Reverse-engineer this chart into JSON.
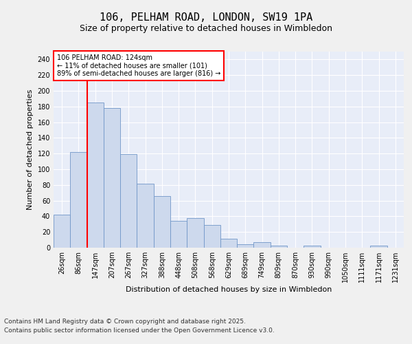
{
  "title1": "106, PELHAM ROAD, LONDON, SW19 1PA",
  "title2": "Size of property relative to detached houses in Wimbledon",
  "xlabel": "Distribution of detached houses by size in Wimbledon",
  "ylabel": "Number of detached properties",
  "bar_labels": [
    "26sqm",
    "86sqm",
    "147sqm",
    "207sqm",
    "267sqm",
    "327sqm",
    "388sqm",
    "448sqm",
    "508sqm",
    "568sqm",
    "629sqm",
    "689sqm",
    "749sqm",
    "809sqm",
    "870sqm",
    "930sqm",
    "990sqm",
    "1050sqm",
    "1111sqm",
    "1171sqm",
    "1231sqm"
  ],
  "bar_values": [
    42,
    122,
    185,
    178,
    119,
    82,
    66,
    34,
    38,
    29,
    11,
    4,
    7,
    3,
    0,
    3,
    0,
    0,
    0,
    3,
    0
  ],
  "bar_color": "#cdd9ed",
  "bar_edge_color": "#7096c8",
  "ylim": [
    0,
    250
  ],
  "yticks": [
    0,
    20,
    40,
    60,
    80,
    100,
    120,
    140,
    160,
    180,
    200,
    220,
    240
  ],
  "red_line_x": 1.5,
  "annotation_title": "106 PELHAM ROAD: 124sqm",
  "annotation_line1": "← 11% of detached houses are smaller (101)",
  "annotation_line2": "89% of semi-detached houses are larger (816) →",
  "footer1": "Contains HM Land Registry data © Crown copyright and database right 2025.",
  "footer2": "Contains public sector information licensed under the Open Government Licence v3.0.",
  "fig_bg_color": "#f0f0f0",
  "plot_bg_color": "#e8edf8",
  "grid_color": "#ffffff",
  "title1_fontsize": 11,
  "title2_fontsize": 9,
  "axis_label_fontsize": 8,
  "tick_fontsize": 7,
  "footer_fontsize": 6.5,
  "annotation_fontsize": 7
}
